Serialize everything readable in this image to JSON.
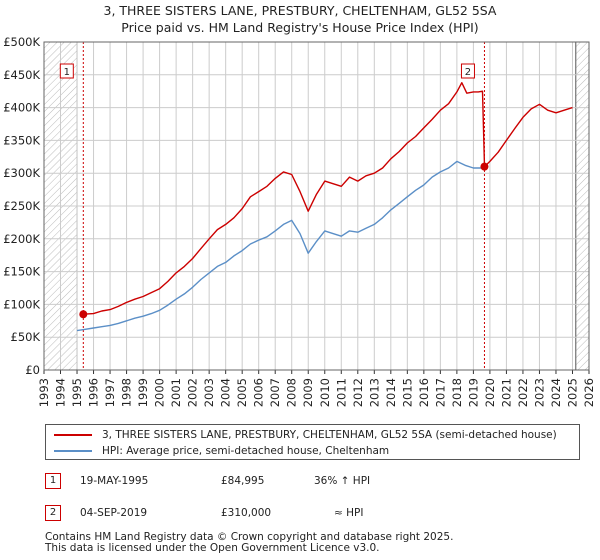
{
  "title": {
    "line1": "3, THREE SISTERS LANE, PRESTBURY, CHELTENHAM, GL52 5SA",
    "line2": "Price paid vs. HM Land Registry's House Price Index (HPI)"
  },
  "chart_data": {
    "type": "line",
    "title": "3, THREE SISTERS LANE, PRESTBURY, CHELTENHAM, GL52 5SA — Price paid vs. HM Land Registry's House Price Index (HPI)",
    "xlabel": "",
    "ylabel": "",
    "xlim": [
      1993,
      2026
    ],
    "ylim": [
      0,
      500000
    ],
    "x_ticks": [
      1993,
      1994,
      1995,
      1996,
      1997,
      1998,
      1999,
      2000,
      2001,
      2002,
      2003,
      2004,
      2005,
      2006,
      2007,
      2008,
      2009,
      2010,
      2011,
      2012,
      2013,
      2014,
      2015,
      2016,
      2017,
      2018,
      2019,
      2020,
      2021,
      2022,
      2023,
      2024,
      2025,
      2026
    ],
    "y_ticks": [
      {
        "value": 0,
        "label": "£0"
      },
      {
        "value": 50000,
        "label": "£50K"
      },
      {
        "value": 100000,
        "label": "£100K"
      },
      {
        "value": 150000,
        "label": "£150K"
      },
      {
        "value": 200000,
        "label": "£200K"
      },
      {
        "value": 250000,
        "label": "£250K"
      },
      {
        "value": 300000,
        "label": "£300K"
      },
      {
        "value": 350000,
        "label": "£350K"
      },
      {
        "value": 400000,
        "label": "£400K"
      },
      {
        "value": 450000,
        "label": "£450K"
      },
      {
        "value": 500000,
        "label": "£500K"
      }
    ],
    "grid": true,
    "hatched_ranges": [
      [
        1993,
        1995.0
      ],
      [
        2025.2,
        2026
      ]
    ],
    "series": [
      {
        "name": "3, THREE SISTERS LANE, PRESTBURY, CHELTENHAM, GL52 5SA (semi-detached house)",
        "color": "#cc0000",
        "x": [
          1995.38,
          1996,
          1996.5,
          1997,
          1997.5,
          1998,
          1998.5,
          1999,
          1999.5,
          2000,
          2000.5,
          2001,
          2001.5,
          2002,
          2002.5,
          2003,
          2003.5,
          2004,
          2004.5,
          2005,
          2005.5,
          2006,
          2006.5,
          2007,
          2007.5,
          2008,
          2008.5,
          2009,
          2009.5,
          2010,
          2010.5,
          2011,
          2011.5,
          2012,
          2012.5,
          2013,
          2013.5,
          2014,
          2014.5,
          2015,
          2015.5,
          2016,
          2016.5,
          2017,
          2017.5,
          2018,
          2018.3,
          2018.6,
          2019.0,
          2019.3,
          2019.55,
          2019.67,
          2020,
          2020.5,
          2021,
          2021.5,
          2022,
          2022.5,
          2023,
          2023.5,
          2024,
          2024.5,
          2025
        ],
        "values": [
          84995,
          86000,
          90000,
          92000,
          97000,
          103000,
          108000,
          112000,
          118000,
          124000,
          135000,
          148000,
          158000,
          170000,
          185000,
          200000,
          214000,
          222000,
          232000,
          246000,
          264000,
          272000,
          280000,
          292000,
          302000,
          298000,
          272000,
          242000,
          268000,
          288000,
          284000,
          280000,
          294000,
          288000,
          296000,
          300000,
          308000,
          322000,
          333000,
          346000,
          356000,
          369000,
          382000,
          396000,
          406000,
          424000,
          438000,
          422000,
          424000,
          424000,
          425000,
          310000,
          318000,
          332000,
          350000,
          368000,
          385000,
          398000,
          405000,
          396000,
          392000,
          396000,
          400000
        ]
      },
      {
        "name": "HPI: Average price, semi-detached house, Cheltenham",
        "color": "#5b8fc7",
        "x": [
          1995.0,
          1995.5,
          1996,
          1996.5,
          1997,
          1997.5,
          1998,
          1998.5,
          1999,
          1999.5,
          2000,
          2000.5,
          2001,
          2001.5,
          2002,
          2002.5,
          2003,
          2003.5,
          2004,
          2004.5,
          2005,
          2005.5,
          2006,
          2006.5,
          2007,
          2007.5,
          2008,
          2008.5,
          2009,
          2009.5,
          2010,
          2010.5,
          2011,
          2011.5,
          2012,
          2012.5,
          2013,
          2013.5,
          2014,
          2014.5,
          2015,
          2015.5,
          2016,
          2016.5,
          2017,
          2017.5,
          2018,
          2018.5,
          2019,
          2019.5,
          2019.67
        ],
        "values": [
          60000,
          62000,
          64000,
          66000,
          68000,
          71000,
          75000,
          79000,
          82000,
          86000,
          91000,
          99000,
          108000,
          116000,
          126000,
          138000,
          148000,
          158000,
          164000,
          174000,
          182000,
          192000,
          198000,
          203000,
          212000,
          222000,
          228000,
          208000,
          178000,
          196000,
          212000,
          208000,
          204000,
          212000,
          210000,
          216000,
          222000,
          232000,
          244000,
          254000,
          264000,
          274000,
          282000,
          294000,
          302000,
          308000,
          318000,
          312000,
          308000,
          308000,
          310000
        ]
      }
    ],
    "annotations": [
      {
        "label": "1",
        "x": 1995.38,
        "y": 84995
      },
      {
        "label": "2",
        "x": 2019.67,
        "y": 310000
      }
    ]
  },
  "legend": {
    "property_label": "3, THREE SISTERS LANE, PRESTBURY, CHELTENHAM, GL52 5SA (semi-detached house)",
    "hpi_label": "HPI: Average price, semi-detached house, Cheltenham"
  },
  "sales": [
    {
      "num": "1",
      "date": "19-MAY-1995",
      "price": "£84,995",
      "hpi": "36% ↑ HPI"
    },
    {
      "num": "2",
      "date": "04-SEP-2019",
      "price": "£310,000",
      "hpi": "≈ HPI"
    }
  ],
  "footer": {
    "line1": "Contains HM Land Registry data © Crown copyright and database right 2025.",
    "line2": "This data is licensed under the Open Government Licence v3.0."
  },
  "colors": {
    "property": "#cc0000",
    "hpi": "#5b8fc7",
    "grid": "#cccccc",
    "marker": "#cc0000"
  }
}
